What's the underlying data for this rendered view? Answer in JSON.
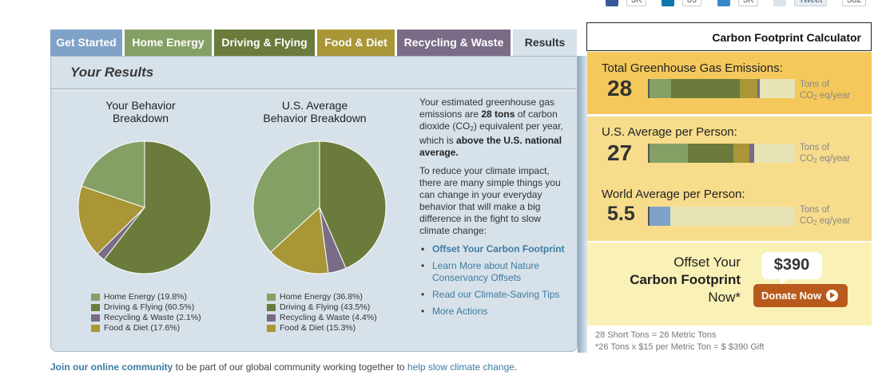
{
  "social": {
    "c1": "3K",
    "c2": "89",
    "c3": "3K",
    "tweet": "Tweet",
    "c4": "382"
  },
  "tabs": [
    {
      "label": "Get Started",
      "color": "#7ea2c8"
    },
    {
      "label": "Home Energy",
      "color": "#85a065"
    },
    {
      "label": "Driving & Flying",
      "color": "#6a7b3c"
    },
    {
      "label": "Food & Diet",
      "color": "#a89637"
    },
    {
      "label": "Recycling & Waste",
      "color": "#7a6b86"
    },
    {
      "label": "Results",
      "color": "#d7e1e9"
    }
  ],
  "panel": {
    "title": "Your Results"
  },
  "pies": [
    {
      "title_line1": "Your Behavior",
      "title_line2": "Breakdown",
      "legend": [
        "Home Energy (19.8%)",
        "Driving & Flying (60.5%)",
        "Recycling & Waste (2.1%)",
        "Food & Diet (17.6%)"
      ],
      "values": [
        19.8,
        60.5,
        2.1,
        17.6
      ]
    },
    {
      "title_line1": "U.S. Average",
      "title_line2": "Behavior Breakdown",
      "legend": [
        "Home Energy (36.8%)",
        "Driving & Flying (43.5%)",
        "Recycling & Waste (4.4%)",
        "Food & Diet (15.3%)"
      ],
      "values": [
        36.8,
        43.5,
        4.4,
        15.3
      ]
    }
  ],
  "pie_colors": [
    "#85a065",
    "#6a7b3c",
    "#7a6b86",
    "#a89637"
  ],
  "summary": {
    "p1_a": "Your estimated greenhouse gas emissions are ",
    "p1_b": "28 tons",
    "p1_c": " of carbon dioxide (CO",
    "p1_sub": "2",
    "p1_d": ") equivalent per year, which is ",
    "p1_e": "above the U.S. national average.",
    "p2": "To reduce your climate impact, there are many simple things you can change in your everyday behavior that will make a big difference in the fight to slow climate change:",
    "links": [
      "Offset Your Carbon Footprint",
      "Learn More about Nature Conservancy Offsets",
      "Read our Climate-Saving Tips",
      "More Actions"
    ]
  },
  "calc": {
    "header": "Carbon Footprint Calculator",
    "unit_line1": "Tons of",
    "unit_co": "CO",
    "unit_sub": "2",
    "unit_rest": " eq/year",
    "metrics": [
      {
        "label": "Total Greenhouse Gas Emissions:",
        "value": "28"
      },
      {
        "label": "U.S. Average per Person:",
        "value": "27"
      },
      {
        "label": "World Average per Person:",
        "value": "5.5"
      }
    ],
    "offset_line1": "Offset Your",
    "offset_line2": "Carbon Footprint",
    "offset_line3": "Now*",
    "price": "$390",
    "donate": "Donate Now",
    "note1": "28 Short Tons =  26 Metric Tons",
    "note2": "*26 Tons x $15 per Metric Ton = $ $390 Gift"
  },
  "bottom": {
    "link1": "Join our online community",
    "text": " to be part of our global community working together to ",
    "link2": "help slow climate change",
    "end": "."
  }
}
